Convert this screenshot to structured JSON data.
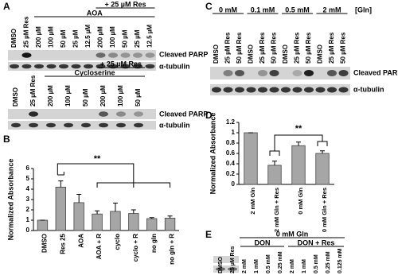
{
  "panel_a": {
    "label": "A",
    "blot_1": {
      "group_1": "AOA",
      "group_2": "+ 25 µM Res",
      "lanes": [
        "DMSO",
        "25 µM Res",
        "200 µM",
        "100 µM",
        "50 µM",
        "25 µM",
        "12.5 µM",
        "200 µM",
        "100 µM",
        "50 µM",
        "25 µM",
        "12.5 µM"
      ],
      "rows": [
        "Cleaved PARP",
        "α-tubulin"
      ]
    },
    "blot_2": {
      "group_1": "Cycloserine",
      "group_2": "+ 25 µM Res",
      "lanes": [
        "DMSO",
        "25 µM Res",
        "200 µM",
        "100 µM",
        "50 µM",
        "200 µM",
        "100 µM",
        "50 µM"
      ],
      "rows": [
        "Cleaved PARP",
        "α-tubulin"
      ]
    }
  },
  "panel_b": {
    "label": "B",
    "chart": {
      "type": "bar",
      "y_label": "Normalized Absorbance",
      "annotation": "**",
      "categories": [
        "DMSO",
        "Res 25",
        "AOA",
        "AOA + R",
        "cyclo",
        "cyclo + R",
        "no gln",
        "no gln + R"
      ],
      "values": [
        1,
        4.2,
        2.7,
        1.6,
        1.85,
        1.65,
        1.15,
        1.2
      ],
      "errors": [
        0,
        0.6,
        0.8,
        0.3,
        0.8,
        0.35,
        0.1,
        0.2
      ],
      "color": "#a6a6a6",
      "ylim": [
        0,
        6
      ],
      "yticks": [
        0,
        1,
        2,
        3,
        4,
        5,
        6
      ]
    }
  },
  "panel_c": {
    "label": "C",
    "groups": [
      "0 mM",
      "0.1 mM",
      "0.5 mM",
      "2 mM"
    ],
    "unit": "[Gln]",
    "lanes": [
      "DMSO",
      "25 µM Res",
      "50 µM Res",
      "DMSO",
      "25 µM Res",
      "50 µM Res",
      "DMSO",
      "25 µM Res",
      "50 µM Res",
      "DMSO",
      "25 µM Res",
      "50 µM Res"
    ],
    "rows": [
      "Cleaved PARP",
      "α-tubulin"
    ]
  },
  "panel_d": {
    "label": "D",
    "chart": {
      "type": "bar",
      "y_label": "Normalized Absorbance",
      "annotation": "**",
      "categories": [
        "2 mM Gln",
        "2 mM Gln + Res",
        "0 mM Gln",
        "0 mM Gln + Res"
      ],
      "values": [
        1,
        0.37,
        0.75,
        0.6
      ],
      "errors": [
        0,
        0.08,
        0.07,
        0.05
      ],
      "color": "#a6a6a6",
      "ylim": [
        0,
        1.2
      ],
      "yticks": [
        0,
        0.2,
        0.4,
        0.6,
        0.8,
        1,
        1.2
      ]
    }
  },
  "panel_e": {
    "label": "E",
    "header": "0 mM Gln",
    "group_1": "DON",
    "group_2": "DON + Res",
    "lanes": [
      "DMSO",
      "25 µM Res",
      "2 mM",
      "1 mM",
      "0.5 mM",
      "0.25 mM",
      "2 mM",
      "1 mM",
      "0.5 mM",
      "0.25 mM",
      "0.125 mM"
    ]
  }
}
